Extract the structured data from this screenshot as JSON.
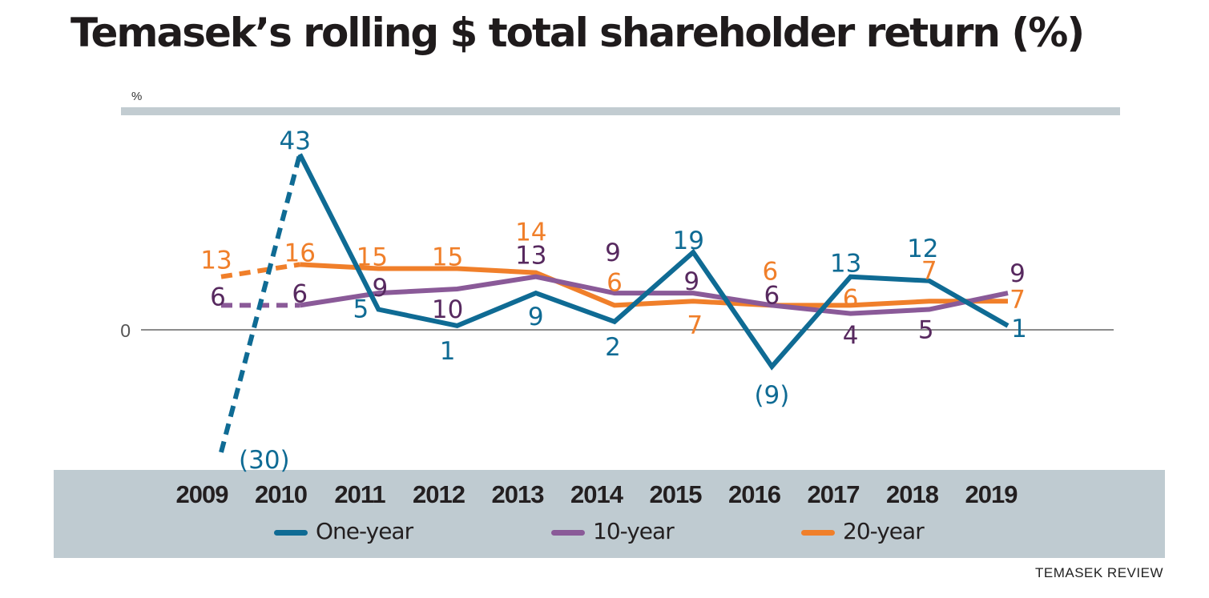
{
  "chart_data": {
    "type": "line",
    "title": "Temasek’s rolling $ total shareholder return (%)",
    "y_unit_label": "%",
    "zero_label": "0",
    "source": "TEMASEK REVIEW",
    "categories": [
      "2009",
      "2010",
      "2011",
      "2012",
      "2013",
      "2014",
      "2015",
      "2016",
      "2017",
      "2018",
      "2019"
    ],
    "ylim": [
      -32,
      45
    ],
    "series": [
      {
        "name": "One-year",
        "color": "#0f6b94",
        "values": [
          -30,
          43,
          5,
          1,
          9,
          2,
          19,
          -9,
          13,
          12,
          1
        ],
        "labels": [
          "(30)",
          "43",
          "5",
          "1",
          "9",
          "2",
          "19",
          "(9)",
          "13",
          "12",
          "1"
        ],
        "dashed_until_index": 1
      },
      {
        "name": "10-year",
        "color": "#8a5a98",
        "label_color": "#57295f",
        "values": [
          6,
          6,
          9,
          10,
          13,
          9,
          9,
          6,
          4,
          5,
          9
        ],
        "labels": [
          "6",
          "6",
          "9",
          "10",
          "13",
          "9",
          "9",
          "6",
          "4",
          "5",
          "9"
        ],
        "dashed_until_index": 1
      },
      {
        "name": "20-year",
        "color": "#f07f2a",
        "values": [
          13,
          16,
          15,
          15,
          14,
          6,
          7,
          6,
          6,
          7,
          7
        ],
        "labels": [
          "13",
          "16",
          "15",
          "15",
          "14",
          "6",
          "7",
          "6",
          "6",
          "7",
          "7"
        ],
        "dashed_until_index": 1
      }
    ],
    "legend": [
      "One-year",
      "10-year",
      "20-year"
    ],
    "legend_position": "bottom"
  }
}
